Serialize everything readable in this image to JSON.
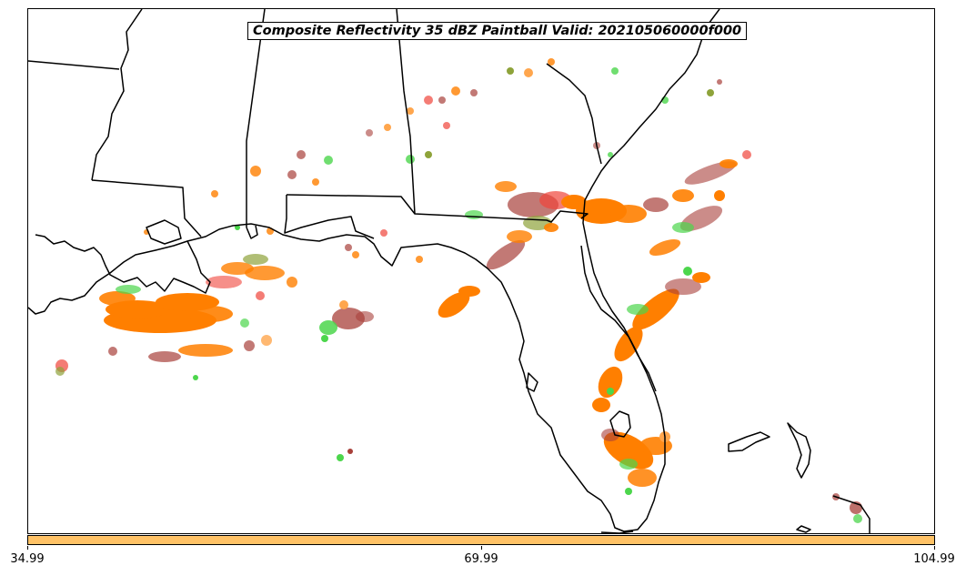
{
  "title": "Composite Reflectivity 35 dBZ Paintball Valid: 202105060000f000",
  "colorbar": {
    "color": "#ffc266",
    "ticks": [
      "34.99",
      "69.99",
      "104.99"
    ]
  },
  "colors": {
    "orange": "#ff7f00",
    "light_orange": "#ffa64d",
    "red": "#f0443a",
    "dark_red": "#a8403a",
    "green": "#4cd64c",
    "olive": "#8ea33a",
    "coastline": "#000000"
  }
}
